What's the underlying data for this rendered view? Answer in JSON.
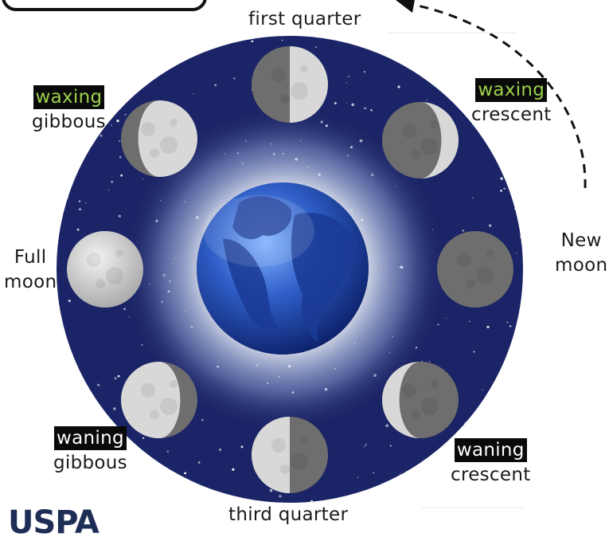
{
  "title_box": {
    "label": ""
  },
  "phases": {
    "first_quarter": {
      "line1": "first quarter"
    },
    "waxing_crescent": {
      "highlight": "waxing",
      "line2": "crescent"
    },
    "new_moon": {
      "line1": "New",
      "line2": "moon"
    },
    "waning_crescent": {
      "highlight": "waning",
      "line2": "crescent"
    },
    "third_quarter": {
      "line1": "third quarter"
    },
    "waning_gibbous": {
      "highlight": "waning",
      "line2": "gibbous"
    },
    "full_moon": {
      "line1": "Full",
      "line2": "moon"
    },
    "waxing_gibbous": {
      "highlight": "waxing",
      "line2": "gibbous"
    }
  },
  "logo": {
    "text": "USPA"
  },
  "colors": {
    "space": "#1b2466",
    "waxing_highlight": "#9bd24c",
    "waning_highlight": "#ffffff",
    "earth_ocean": "#2f5fc8",
    "moon_light": "#d8d8d8",
    "moon_dark": "#6e6e6e"
  }
}
